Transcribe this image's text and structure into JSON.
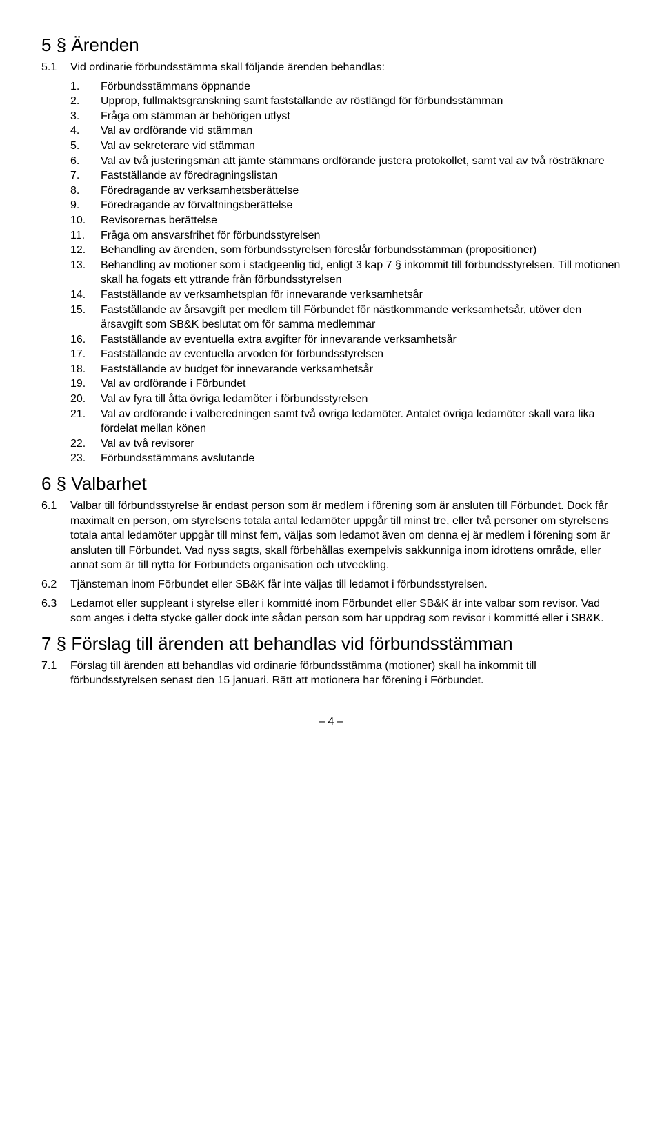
{
  "section5": {
    "heading": "5 §  Ärenden",
    "sub": {
      "num": "5.1",
      "intro": "Vid ordinarie förbundsstämma skall följande ärenden behandlas:"
    },
    "items": [
      "Förbundsstämmans öppnande",
      "Upprop, fullmaktsgranskning samt fastställande av röstlängd för förbundsstämman",
      "Fråga om stämman är behörigen utlyst",
      "Val av ordförande vid stämman",
      "Val av sekreterare vid stämman",
      "Val av två justeringsmän att jämte stämmans ordförande justera protokollet, samt val av två rösträknare",
      "Fastställande av föredragningslistan",
      "Föredragande av verksamhetsberättelse",
      "Föredragande av förvaltningsberättelse",
      "Revisorernas berättelse",
      "Fråga om ansvarsfrihet för förbundsstyrelsen",
      "Behandling av ärenden, som förbundsstyrelsen föreslår förbundsstämman (propositioner)",
      "Behandling av motioner som i stadgeenlig tid, enligt 3 kap 7 § inkommit till förbundsstyrelsen. Till motionen skall ha fogats ett yttrande från förbundsstyrelsen",
      "Fastställande av verksamhetsplan för innevarande verksamhetsår",
      "Fastställande av årsavgift per medlem till Förbundet för nästkommande verksamhetsår, utöver den årsavgift som SB&K beslutat om för samma medlemmar",
      "Fastställande av eventuella extra avgifter för innevarande verksamhetsår",
      "Fastställande av eventuella arvoden för förbundsstyrelsen",
      "Fastställande av budget för innevarande verksamhetsår",
      "Val av ordförande i Förbundet",
      "Val av fyra till åtta övriga ledamöter i förbundsstyrelsen",
      "Val av ordförande i valberedningen samt två övriga ledamöter. Antalet övriga ledamöter skall vara lika fördelat mellan könen",
      "Val av två revisorer",
      "Förbundsstämmans avslutande"
    ]
  },
  "section6": {
    "heading": "6 §  Valbarhet",
    "clauses": [
      {
        "num": "6.1",
        "text": "Valbar till förbundsstyrelse är endast person som är medlem i förening som är ansluten till Förbundet. Dock får maximalt en person, om styrelsens totala antal ledamöter uppgår till minst tre, eller två personer om styrelsens totala antal ledamöter uppgår till minst fem, väljas som ledamot även om denna ej är medlem i förening som är ansluten till Förbundet. Vad nyss sagts, skall förbehållas exempelvis sakkunniga inom idrottens område, eller annat som är till nytta för Förbundets organisation och utveckling."
      },
      {
        "num": "6.2",
        "text": "Tjänsteman inom Förbundet eller SB&K får inte väljas till ledamot i förbundsstyrelsen."
      },
      {
        "num": "6.3",
        "text": "Ledamot eller suppleant i styrelse eller i kommitté inom Förbundet eller SB&K är inte valbar som revisor. Vad som anges i detta stycke gäller dock inte sådan person som har uppdrag som revisor i kommitté eller i SB&K."
      }
    ]
  },
  "section7": {
    "heading": "7 §  Förslag till ärenden att behandlas vid förbundsstämman",
    "clauses": [
      {
        "num": "7.1",
        "text": "Förslag till ärenden att behandlas vid ordinarie förbundsstämma (motioner) skall ha inkommit till förbundsstyrelsen senast den 15 januari. Rätt att motionera har förening i Förbundet."
      }
    ]
  },
  "footer": "– 4 –"
}
